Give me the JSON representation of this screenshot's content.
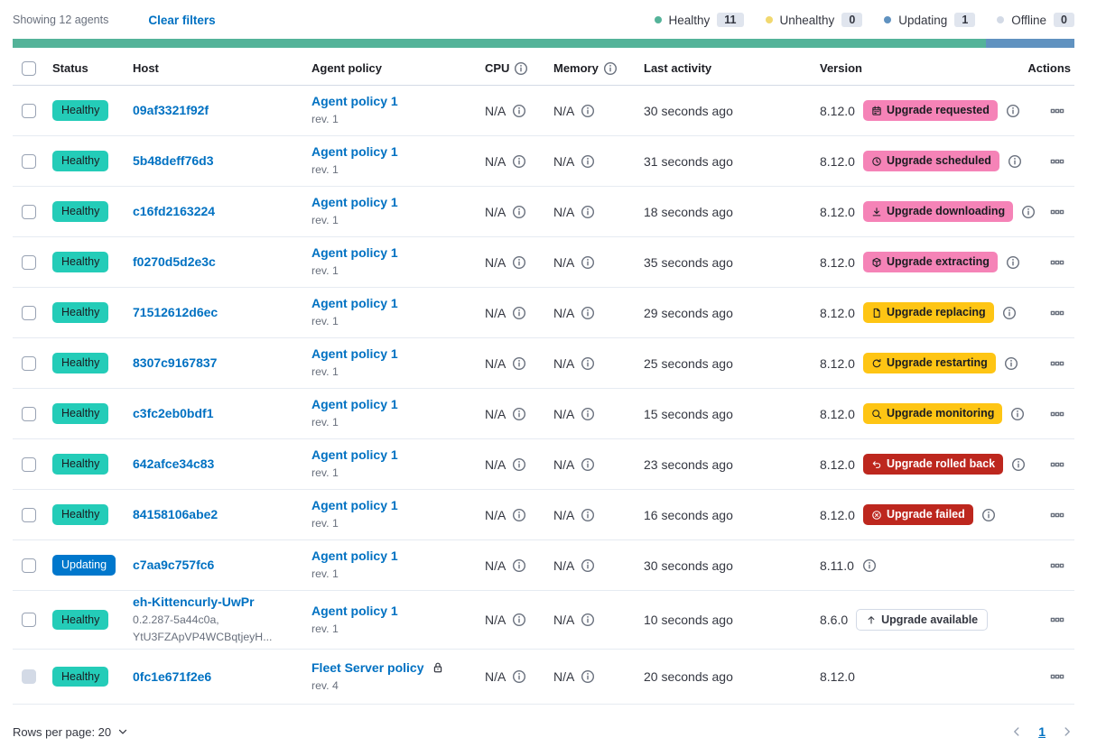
{
  "header_bar": {
    "showing": "Showing 12 agents",
    "clear_filters": "Clear filters",
    "legend": [
      {
        "label": "Healthy",
        "count": "11",
        "dot_color": "#54B399"
      },
      {
        "label": "Unhealthy",
        "count": "0",
        "dot_color": "#F1D86F"
      },
      {
        "label": "Updating",
        "count": "1",
        "dot_color": "#6092C0"
      },
      {
        "label": "Offline",
        "count": "0",
        "dot_color": "#D3DAE6"
      }
    ],
    "progress_segments": [
      {
        "name": "healthy",
        "color": "#54B399",
        "percent": 91.7
      },
      {
        "name": "updating",
        "color": "#6092C0",
        "percent": 8.3
      }
    ]
  },
  "colors": {
    "status": {
      "healthy": {
        "bg": "#24CCB8",
        "fg": "#1A1C21"
      },
      "updating": {
        "bg": "#0077CC",
        "fg": "#FFFFFF"
      }
    },
    "upgrade": {
      "pink": {
        "bg": "#F583B7",
        "fg": "#1A1C21"
      },
      "yellow": {
        "bg": "#FEC514",
        "fg": "#1A1C21"
      },
      "red": {
        "bg": "#BD271E",
        "fg": "#FFFFFF"
      },
      "hollow": {
        "bg": "#FFFFFF",
        "fg": "#343741"
      }
    }
  },
  "table": {
    "columns": [
      "Status",
      "Host",
      "Agent policy",
      "CPU",
      "Memory",
      "Last activity",
      "Version",
      "Actions"
    ],
    "rows": [
      {
        "status": "Healthy",
        "variant": "healthy",
        "host": "09af3321f92f",
        "policy": "Agent policy 1",
        "rev": "rev. 1",
        "cpu": "N/A",
        "memory": "N/A",
        "last_activity": "30 seconds ago",
        "version": "8.12.0",
        "upgrade": {
          "label": "Upgrade requested",
          "icon": "calendar",
          "variant": "pink"
        },
        "info_after": true
      },
      {
        "status": "Healthy",
        "variant": "healthy",
        "host": "5b48deff76d3",
        "policy": "Agent policy 1",
        "rev": "rev. 1",
        "cpu": "N/A",
        "memory": "N/A",
        "last_activity": "31 seconds ago",
        "version": "8.12.0",
        "upgrade": {
          "label": "Upgrade scheduled",
          "icon": "clock",
          "variant": "pink"
        },
        "info_after": true
      },
      {
        "status": "Healthy",
        "variant": "healthy",
        "host": "c16fd2163224",
        "policy": "Agent policy 1",
        "rev": "rev. 1",
        "cpu": "N/A",
        "memory": "N/A",
        "last_activity": "18 seconds ago",
        "version": "8.12.0",
        "upgrade": {
          "label": "Upgrade downloading",
          "icon": "download",
          "variant": "pink"
        },
        "info_after": true
      },
      {
        "status": "Healthy",
        "variant": "healthy",
        "host": "f0270d5d2e3c",
        "policy": "Agent policy 1",
        "rev": "rev. 1",
        "cpu": "N/A",
        "memory": "N/A",
        "last_activity": "35 seconds ago",
        "version": "8.12.0",
        "upgrade": {
          "label": "Upgrade extracting",
          "icon": "package",
          "variant": "pink"
        },
        "info_after": true
      },
      {
        "status": "Healthy",
        "variant": "healthy",
        "host": "71512612d6ec",
        "policy": "Agent policy 1",
        "rev": "rev. 1",
        "cpu": "N/A",
        "memory": "N/A",
        "last_activity": "29 seconds ago",
        "version": "8.12.0",
        "upgrade": {
          "label": "Upgrade replacing",
          "icon": "document",
          "variant": "yellow"
        },
        "info_after": true
      },
      {
        "status": "Healthy",
        "variant": "healthy",
        "host": "8307c9167837",
        "policy": "Agent policy 1",
        "rev": "rev. 1",
        "cpu": "N/A",
        "memory": "N/A",
        "last_activity": "25 seconds ago",
        "version": "8.12.0",
        "upgrade": {
          "label": "Upgrade restarting",
          "icon": "refresh",
          "variant": "yellow"
        },
        "info_after": true
      },
      {
        "status": "Healthy",
        "variant": "healthy",
        "host": "c3fc2eb0bdf1",
        "policy": "Agent policy 1",
        "rev": "rev. 1",
        "cpu": "N/A",
        "memory": "N/A",
        "last_activity": "15 seconds ago",
        "version": "8.12.0",
        "upgrade": {
          "label": "Upgrade monitoring",
          "icon": "inspect",
          "variant": "yellow"
        },
        "info_after": true
      },
      {
        "status": "Healthy",
        "variant": "healthy",
        "host": "642afce34c83",
        "policy": "Agent policy 1",
        "rev": "rev. 1",
        "cpu": "N/A",
        "memory": "N/A",
        "last_activity": "23 seconds ago",
        "version": "8.12.0",
        "upgrade": {
          "label": "Upgrade rolled back",
          "icon": "return",
          "variant": "red"
        },
        "info_after": true
      },
      {
        "status": "Healthy",
        "variant": "healthy",
        "host": "84158106abe2",
        "policy": "Agent policy 1",
        "rev": "rev. 1",
        "cpu": "N/A",
        "memory": "N/A",
        "last_activity": "16 seconds ago",
        "version": "8.12.0",
        "upgrade": {
          "label": "Upgrade failed",
          "icon": "crossCircle",
          "variant": "red"
        },
        "info_after": true
      },
      {
        "status": "Updating",
        "variant": "updating",
        "host": "c7aa9c757fc6",
        "policy": "Agent policy 1",
        "rev": "rev. 1",
        "cpu": "N/A",
        "memory": "N/A",
        "last_activity": "30 seconds ago",
        "version": "8.11.0",
        "upgrade": null,
        "info_after": true
      },
      {
        "status": "Healthy",
        "variant": "healthy",
        "host": "eh-Kittencurly-UwPr",
        "host_sub": [
          "0.2.287-5a44c0a,",
          "YtU3FZApVP4WCBqtjeyH..."
        ],
        "policy": "Agent policy 1",
        "rev": "rev. 1",
        "cpu": "N/A",
        "memory": "N/A",
        "last_activity": "10 seconds ago",
        "version": "8.6.0",
        "upgrade": {
          "label": "Upgrade available",
          "icon": "arrowUp",
          "variant": "hollow"
        },
        "info_after": false
      },
      {
        "status": "Healthy",
        "variant": "healthy",
        "host": "0fc1e671f2e6",
        "policy": "Fleet Server policy",
        "policy_lock": true,
        "rev": "rev. 4",
        "cpu": "N/A",
        "memory": "N/A",
        "last_activity": "20 seconds ago",
        "version": "8.12.0",
        "upgrade": null,
        "info_after": false,
        "checkbox_disabled": true
      }
    ]
  },
  "icon_names": [
    "info-icon",
    "lock-icon",
    "boxes-horizontal-icon",
    "chevron-down-icon",
    "chevron-left-icon",
    "chevron-right-icon",
    "calendar-icon",
    "clock-icon",
    "download-icon",
    "package-icon",
    "document-icon",
    "refresh-icon",
    "inspect-icon",
    "return-icon",
    "cross-in-circle-icon",
    "arrow-up-icon"
  ],
  "footer": {
    "rows_per_page": "Rows per page: 20",
    "page": "1"
  }
}
